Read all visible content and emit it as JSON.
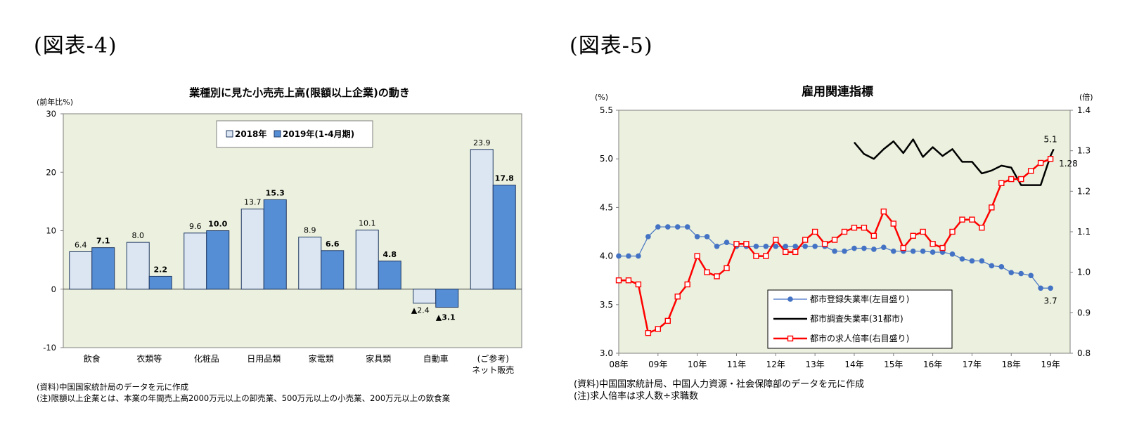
{
  "figure_labels": {
    "left": "(図表-4)",
    "right": "(図表-5)"
  },
  "chart_data": [
    {
      "type": "bar",
      "title": "業種別に見た小売売上高(限額以上企業)の動き",
      "ylabel": "(前年比%)",
      "ylim": [
        -10,
        30
      ],
      "yticks": [
        -10,
        0,
        10,
        20,
        30
      ],
      "categories": [
        "飲食",
        "衣類等",
        "化粧品",
        "日用品類",
        "家電類",
        "家具類",
        "自動車",
        "(ご参考)\nネット販売"
      ],
      "series": [
        {
          "name": "2018年",
          "color": "#dce6f2",
          "values": [
            6.4,
            8.0,
            9.6,
            13.7,
            8.9,
            10.1,
            -2.4,
            23.9
          ],
          "labels": [
            "6.4",
            "8.0",
            "9.6",
            "13.7",
            "8.9",
            "10.1",
            "▲2.4",
            "23.9"
          ]
        },
        {
          "name": "2019年(1-4月期)",
          "color": "#558ed5",
          "values": [
            7.1,
            2.2,
            10.0,
            15.3,
            6.6,
            4.8,
            -3.1,
            17.8
          ],
          "labels": [
            "7.1",
            "2.2",
            "10.0",
            "15.3",
            "6.6",
            "4.8",
            "▲3.1",
            "17.8"
          ]
        }
      ],
      "grid": false,
      "legend_placement": "top",
      "plot_background": "#ebf1de",
      "notes": [
        "(資料)中国国家統計局のデータを元に作成",
        "(注)限額以上企業とは、本業の年間売上高2000万元以上の卸売業、500万元以上の小売業、200万元以上の飲食業"
      ]
    },
    {
      "type": "line",
      "title": "雇用関連指標",
      "ylabel": "(%)",
      "y2label": "(倍)",
      "ylim": [
        3.0,
        5.5
      ],
      "yticks": [
        "3.0",
        "3.5",
        "4.0",
        "4.5",
        "5.0",
        "5.5"
      ],
      "y2lim": [
        0.8,
        1.4
      ],
      "y2ticks": [
        "0.8",
        "0.9",
        "1.0",
        "1.1",
        "1.2",
        "1.3",
        "1.4"
      ],
      "xlim": [
        2008,
        2019.5
      ],
      "xticks": [
        "08年",
        "09年",
        "10年",
        "11年",
        "12年",
        "13年",
        "14年",
        "15年",
        "16年",
        "17年",
        "18年",
        "19年"
      ],
      "grid": false,
      "legend_placement": "bottom-left",
      "plot_background": "#ebf1de",
      "series": [
        {
          "name": "都市登録失業率(左目盛り)",
          "axis": "left",
          "color": "#4472c4",
          "marker": "circle",
          "x": [
            2008.0,
            2008.25,
            2008.5,
            2008.75,
            2009.0,
            2009.25,
            2009.5,
            2009.75,
            2010.0,
            2010.25,
            2010.5,
            2010.75,
            2011.0,
            2011.25,
            2011.5,
            2011.75,
            2012.0,
            2012.25,
            2012.5,
            2012.75,
            2013.0,
            2013.25,
            2013.5,
            2013.75,
            2014.0,
            2014.25,
            2014.5,
            2014.75,
            2015.0,
            2015.25,
            2015.5,
            2015.75,
            2016.0,
            2016.25,
            2016.5,
            2016.75,
            2017.0,
            2017.25,
            2017.5,
            2017.75,
            2018.0,
            2018.25,
            2018.5,
            2018.75,
            2019.0
          ],
          "y": [
            4.0,
            4.0,
            4.0,
            4.2,
            4.3,
            4.3,
            4.3,
            4.3,
            4.2,
            4.2,
            4.1,
            4.14,
            4.1,
            4.1,
            4.1,
            4.1,
            4.1,
            4.1,
            4.1,
            4.1,
            4.1,
            4.1,
            4.05,
            4.05,
            4.08,
            4.08,
            4.07,
            4.09,
            4.05,
            4.05,
            4.05,
            4.05,
            4.04,
            4.04,
            4.02,
            3.97,
            3.95,
            3.95,
            3.9,
            3.89,
            3.83,
            3.82,
            3.8,
            3.67,
            3.67
          ]
        },
        {
          "name": "都市調査失業率(31都市)",
          "axis": "left",
          "color": "#000000",
          "marker": "none",
          "x": [
            2014.0,
            2014.25,
            2014.5,
            2014.75,
            2015.0,
            2015.25,
            2015.5,
            2015.75,
            2016.0,
            2016.25,
            2016.5,
            2016.75,
            2017.0,
            2017.25,
            2017.5,
            2017.75,
            2018.0,
            2018.25,
            2018.5,
            2018.75,
            2019.0,
            2019.08
          ],
          "y": [
            5.17,
            5.05,
            5.0,
            5.1,
            5.18,
            5.06,
            5.2,
            5.02,
            5.12,
            5.03,
            5.1,
            4.97,
            4.97,
            4.85,
            4.88,
            4.93,
            4.91,
            4.73,
            4.73,
            4.73,
            5.03,
            5.1
          ]
        },
        {
          "name": "都市の求人倍率(右目盛り)",
          "axis": "right",
          "color": "#ff0000",
          "marker": "square-open",
          "x": [
            2008.0,
            2008.25,
            2008.5,
            2008.75,
            2009.0,
            2009.25,
            2009.5,
            2009.75,
            2010.0,
            2010.25,
            2010.5,
            2010.75,
            2011.0,
            2011.25,
            2011.5,
            2011.75,
            2012.0,
            2012.25,
            2012.5,
            2012.75,
            2013.0,
            2013.25,
            2013.5,
            2013.75,
            2014.0,
            2014.25,
            2014.5,
            2014.75,
            2015.0,
            2015.25,
            2015.5,
            2015.75,
            2016.0,
            2016.25,
            2016.5,
            2016.75,
            2017.0,
            2017.25,
            2017.5,
            2017.75,
            2018.0,
            2018.25,
            2018.5,
            2018.75,
            2019.0
          ],
          "y": [
            0.98,
            0.98,
            0.97,
            0.85,
            0.86,
            0.88,
            0.94,
            0.97,
            1.04,
            1.0,
            0.99,
            1.01,
            1.07,
            1.07,
            1.04,
            1.04,
            1.08,
            1.05,
            1.05,
            1.08,
            1.1,
            1.07,
            1.08,
            1.1,
            1.11,
            1.11,
            1.09,
            1.15,
            1.12,
            1.06,
            1.09,
            1.1,
            1.07,
            1.06,
            1.1,
            1.13,
            1.13,
            1.11,
            1.16,
            1.22,
            1.23,
            1.23,
            1.25,
            1.27,
            1.28
          ]
        }
      ],
      "annotations": [
        "5.1",
        "1.28",
        "3.7"
      ],
      "notes": [
        "(資料)中国国家統計局、中国人力資源・社会保障部のデータを元に作成",
        "(注)求人倍率は求人数÷求職数"
      ]
    }
  ]
}
